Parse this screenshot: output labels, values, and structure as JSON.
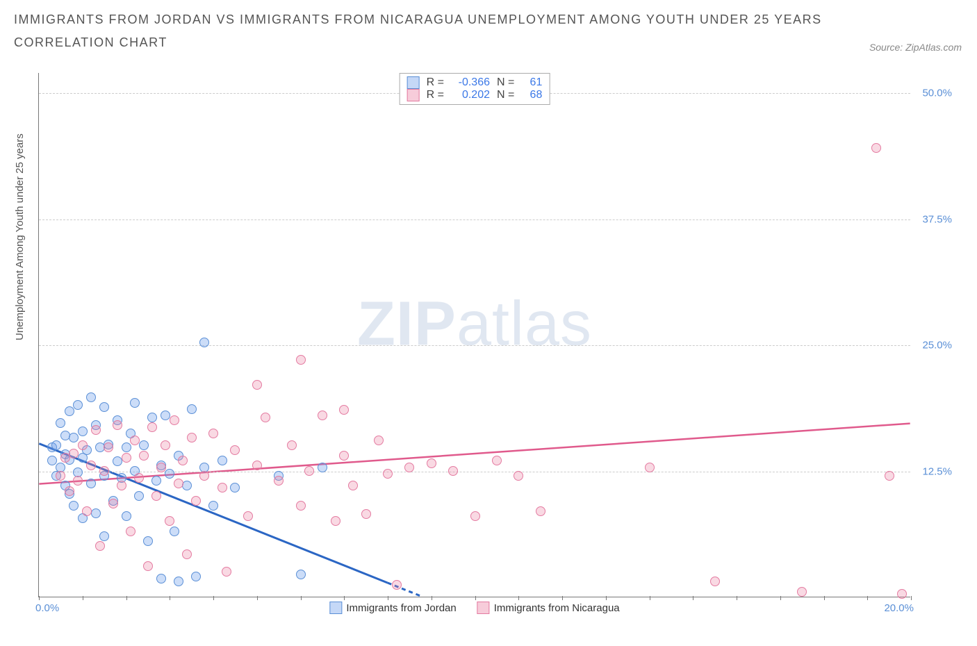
{
  "title_line1": "IMMIGRANTS FROM JORDAN VS IMMIGRANTS FROM NICARAGUA UNEMPLOYMENT AMONG YOUTH UNDER 25 YEARS",
  "title_line2": "CORRELATION CHART",
  "source_label": "Source: ZipAtlas.com",
  "ylabel": "Unemployment Among Youth under 25 years",
  "watermark_bold": "ZIP",
  "watermark_light": "atlas",
  "chart": {
    "type": "scatter",
    "xlim": [
      0,
      20
    ],
    "ylim": [
      0,
      52
    ],
    "xticks_minor": [
      0,
      1,
      2,
      3,
      4,
      5,
      6,
      7,
      8,
      9,
      10,
      11,
      12,
      13,
      14,
      15,
      16,
      17,
      18,
      19,
      20
    ],
    "xtick_labels": {
      "0": "0.0%",
      "20": "20.0%"
    },
    "ytick_values": [
      12.5,
      25.0,
      37.5,
      50.0
    ],
    "ytick_labels": [
      "12.5%",
      "25.0%",
      "37.5%",
      "50.0%"
    ],
    "grid_color": "#cccccc",
    "axis_color": "#777777",
    "background_color": "#ffffff",
    "point_radius": 7,
    "series": [
      {
        "name": "Immigrants from Jordan",
        "color_fill": "rgba(109,158,235,0.35)",
        "color_stroke": "#5a8fd6",
        "R": "-0.366",
        "N": "61",
        "trend": {
          "x1": 0,
          "y1": 15.2,
          "x2": 8.8,
          "y2": 0,
          "color": "#2b66c4",
          "width": 3,
          "dash_after_x": 8.0
        },
        "points": [
          [
            0.3,
            13.5
          ],
          [
            0.3,
            14.8
          ],
          [
            0.4,
            12.0
          ],
          [
            0.4,
            15.0
          ],
          [
            0.5,
            12.8
          ],
          [
            0.5,
            17.2
          ],
          [
            0.6,
            11.0
          ],
          [
            0.6,
            14.1
          ],
          [
            0.6,
            16.0
          ],
          [
            0.7,
            10.2
          ],
          [
            0.7,
            13.6
          ],
          [
            0.7,
            18.4
          ],
          [
            0.8,
            9.0
          ],
          [
            0.8,
            15.8
          ],
          [
            0.9,
            12.3
          ],
          [
            0.9,
            19.0
          ],
          [
            1.0,
            7.8
          ],
          [
            1.0,
            13.8
          ],
          [
            1.0,
            16.4
          ],
          [
            1.1,
            14.5
          ],
          [
            1.2,
            11.2
          ],
          [
            1.2,
            19.8
          ],
          [
            1.3,
            8.3
          ],
          [
            1.3,
            17.0
          ],
          [
            1.4,
            14.8
          ],
          [
            1.5,
            6.0
          ],
          [
            1.5,
            12.0
          ],
          [
            1.5,
            18.8
          ],
          [
            1.6,
            15.1
          ],
          [
            1.7,
            9.5
          ],
          [
            1.8,
            13.4
          ],
          [
            1.8,
            17.5
          ],
          [
            1.9,
            11.8
          ],
          [
            2.0,
            14.8
          ],
          [
            2.0,
            8.0
          ],
          [
            2.1,
            16.2
          ],
          [
            2.2,
            12.5
          ],
          [
            2.2,
            19.2
          ],
          [
            2.3,
            10.0
          ],
          [
            2.4,
            15.0
          ],
          [
            2.5,
            5.5
          ],
          [
            2.6,
            17.8
          ],
          [
            2.7,
            11.5
          ],
          [
            2.8,
            13.0
          ],
          [
            2.8,
            1.8
          ],
          [
            2.9,
            18.0
          ],
          [
            3.0,
            12.2
          ],
          [
            3.1,
            6.5
          ],
          [
            3.2,
            14.0
          ],
          [
            3.2,
            1.5
          ],
          [
            3.4,
            11.0
          ],
          [
            3.5,
            18.6
          ],
          [
            3.6,
            2.0
          ],
          [
            3.8,
            12.8
          ],
          [
            3.8,
            25.2
          ],
          [
            4.0,
            9.0
          ],
          [
            4.2,
            13.5
          ],
          [
            4.5,
            10.8
          ],
          [
            5.5,
            12.0
          ],
          [
            6.0,
            2.2
          ],
          [
            6.5,
            12.8
          ]
        ]
      },
      {
        "name": "Immigrants from Nicaragua",
        "color_fill": "rgba(234,128,163,0.30)",
        "color_stroke": "#e47aa0",
        "R": "0.202",
        "N": "68",
        "trend": {
          "x1": 0,
          "y1": 11.2,
          "x2": 20,
          "y2": 17.2,
          "color": "#e05a8c",
          "width": 2.5
        },
        "points": [
          [
            0.5,
            12.0
          ],
          [
            0.6,
            13.8
          ],
          [
            0.7,
            10.5
          ],
          [
            0.8,
            14.2
          ],
          [
            0.9,
            11.5
          ],
          [
            1.0,
            15.0
          ],
          [
            1.1,
            8.5
          ],
          [
            1.2,
            13.0
          ],
          [
            1.3,
            16.5
          ],
          [
            1.4,
            5.0
          ],
          [
            1.5,
            12.5
          ],
          [
            1.6,
            14.8
          ],
          [
            1.7,
            9.2
          ],
          [
            1.8,
            17.0
          ],
          [
            1.9,
            11.0
          ],
          [
            2.0,
            13.8
          ],
          [
            2.1,
            6.5
          ],
          [
            2.2,
            15.5
          ],
          [
            2.3,
            11.8
          ],
          [
            2.4,
            14.0
          ],
          [
            2.5,
            3.0
          ],
          [
            2.6,
            16.8
          ],
          [
            2.7,
            10.0
          ],
          [
            2.8,
            12.8
          ],
          [
            2.9,
            15.0
          ],
          [
            3.0,
            7.5
          ],
          [
            3.1,
            17.5
          ],
          [
            3.2,
            11.2
          ],
          [
            3.3,
            13.5
          ],
          [
            3.4,
            4.2
          ],
          [
            3.5,
            15.8
          ],
          [
            3.6,
            9.5
          ],
          [
            3.8,
            12.0
          ],
          [
            4.0,
            16.2
          ],
          [
            4.2,
            10.8
          ],
          [
            4.3,
            2.5
          ],
          [
            4.5,
            14.5
          ],
          [
            4.8,
            8.0
          ],
          [
            5.0,
            21.0
          ],
          [
            5.0,
            13.0
          ],
          [
            5.2,
            17.8
          ],
          [
            5.5,
            11.5
          ],
          [
            5.8,
            15.0
          ],
          [
            6.0,
            9.0
          ],
          [
            6.0,
            23.5
          ],
          [
            6.2,
            12.5
          ],
          [
            6.5,
            18.0
          ],
          [
            6.8,
            7.5
          ],
          [
            7.0,
            14.0
          ],
          [
            7.0,
            18.5
          ],
          [
            7.2,
            11.0
          ],
          [
            7.5,
            8.2
          ],
          [
            7.8,
            15.5
          ],
          [
            8.0,
            12.2
          ],
          [
            8.2,
            1.2
          ],
          [
            8.5,
            12.8
          ],
          [
            9.0,
            13.2
          ],
          [
            9.5,
            12.5
          ],
          [
            10.0,
            8.0
          ],
          [
            10.5,
            13.5
          ],
          [
            11.0,
            12.0
          ],
          [
            11.5,
            8.5
          ],
          [
            14.0,
            12.8
          ],
          [
            15.5,
            1.5
          ],
          [
            17.5,
            0.5
          ],
          [
            19.2,
            44.5
          ],
          [
            19.5,
            12.0
          ],
          [
            19.8,
            0.3
          ]
        ]
      }
    ]
  },
  "legend_top": {
    "R_label": "R =",
    "N_label": "N ="
  },
  "legend_bottom": {
    "series1": "Immigrants from Jordan",
    "series2": "Immigrants from Nicaragua"
  }
}
